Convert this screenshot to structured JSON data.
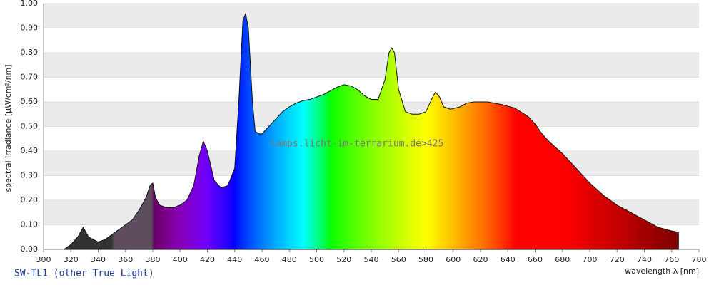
{
  "chart_data": {
    "type": "area",
    "caption": "SW-TL1 (other True Light)",
    "watermark": "lamps.licht-im-terrarium.de>425",
    "x_label": "wavelength λ [nm]",
    "y_label": "spectral irradiance [µW/cm²/nm]",
    "xlim": [
      300,
      780
    ],
    "ylim": [
      0,
      1
    ],
    "xticks": [
      300,
      320,
      340,
      360,
      380,
      400,
      420,
      440,
      460,
      480,
      500,
      520,
      540,
      560,
      580,
      600,
      620,
      640,
      660,
      680,
      700,
      720,
      740,
      760,
      780
    ],
    "yticks": [
      {
        "value": 0,
        "label": "0.00"
      },
      {
        "value": 0.1,
        "label": "0.10"
      },
      {
        "value": 0.2,
        "label": "0.20"
      },
      {
        "value": 0.3,
        "label": "0.30"
      },
      {
        "value": 0.4,
        "label": "0.40"
      },
      {
        "value": 0.5,
        "label": "0.50"
      },
      {
        "value": 0.6,
        "label": "0.60"
      },
      {
        "value": 0.7,
        "label": "0.70"
      },
      {
        "value": 0.8,
        "label": "0.80"
      },
      {
        "value": 0.9,
        "label": "0.90"
      },
      {
        "value": 1,
        "label": "1.00"
      }
    ],
    "grid": "banded",
    "x": [
      315,
      320,
      325,
      329,
      333,
      340,
      345,
      350,
      355,
      360,
      365,
      370,
      375,
      378,
      380,
      382,
      385,
      390,
      395,
      400,
      405,
      410,
      414,
      417,
      420,
      425,
      430,
      435,
      440,
      443,
      446,
      448,
      450,
      453,
      455,
      458,
      460,
      465,
      470,
      475,
      480,
      485,
      490,
      495,
      500,
      505,
      510,
      515,
      520,
      525,
      530,
      535,
      540,
      545,
      550,
      553,
      555,
      557,
      560,
      565,
      570,
      575,
      580,
      585,
      587,
      590,
      593,
      598,
      605,
      610,
      615,
      625,
      635,
      645,
      655,
      660,
      665,
      670,
      680,
      690,
      700,
      710,
      720,
      730,
      740,
      750,
      760,
      765
    ],
    "values": [
      0,
      0.02,
      0.05,
      0.09,
      0.05,
      0.03,
      0.04,
      0.06,
      0.08,
      0.1,
      0.12,
      0.16,
      0.21,
      0.26,
      0.27,
      0.21,
      0.18,
      0.17,
      0.17,
      0.18,
      0.2,
      0.26,
      0.38,
      0.44,
      0.4,
      0.28,
      0.25,
      0.26,
      0.33,
      0.6,
      0.93,
      0.96,
      0.9,
      0.6,
      0.48,
      0.47,
      0.47,
      0.5,
      0.53,
      0.56,
      0.58,
      0.595,
      0.605,
      0.61,
      0.62,
      0.63,
      0.645,
      0.66,
      0.67,
      0.665,
      0.65,
      0.625,
      0.61,
      0.61,
      0.69,
      0.8,
      0.82,
      0.8,
      0.65,
      0.56,
      0.55,
      0.55,
      0.56,
      0.62,
      0.64,
      0.62,
      0.58,
      0.57,
      0.58,
      0.595,
      0.6,
      0.6,
      0.59,
      0.575,
      0.54,
      0.51,
      0.47,
      0.44,
      0.39,
      0.33,
      0.27,
      0.22,
      0.18,
      0.15,
      0.12,
      0.09,
      0.075,
      0.07
    ]
  }
}
